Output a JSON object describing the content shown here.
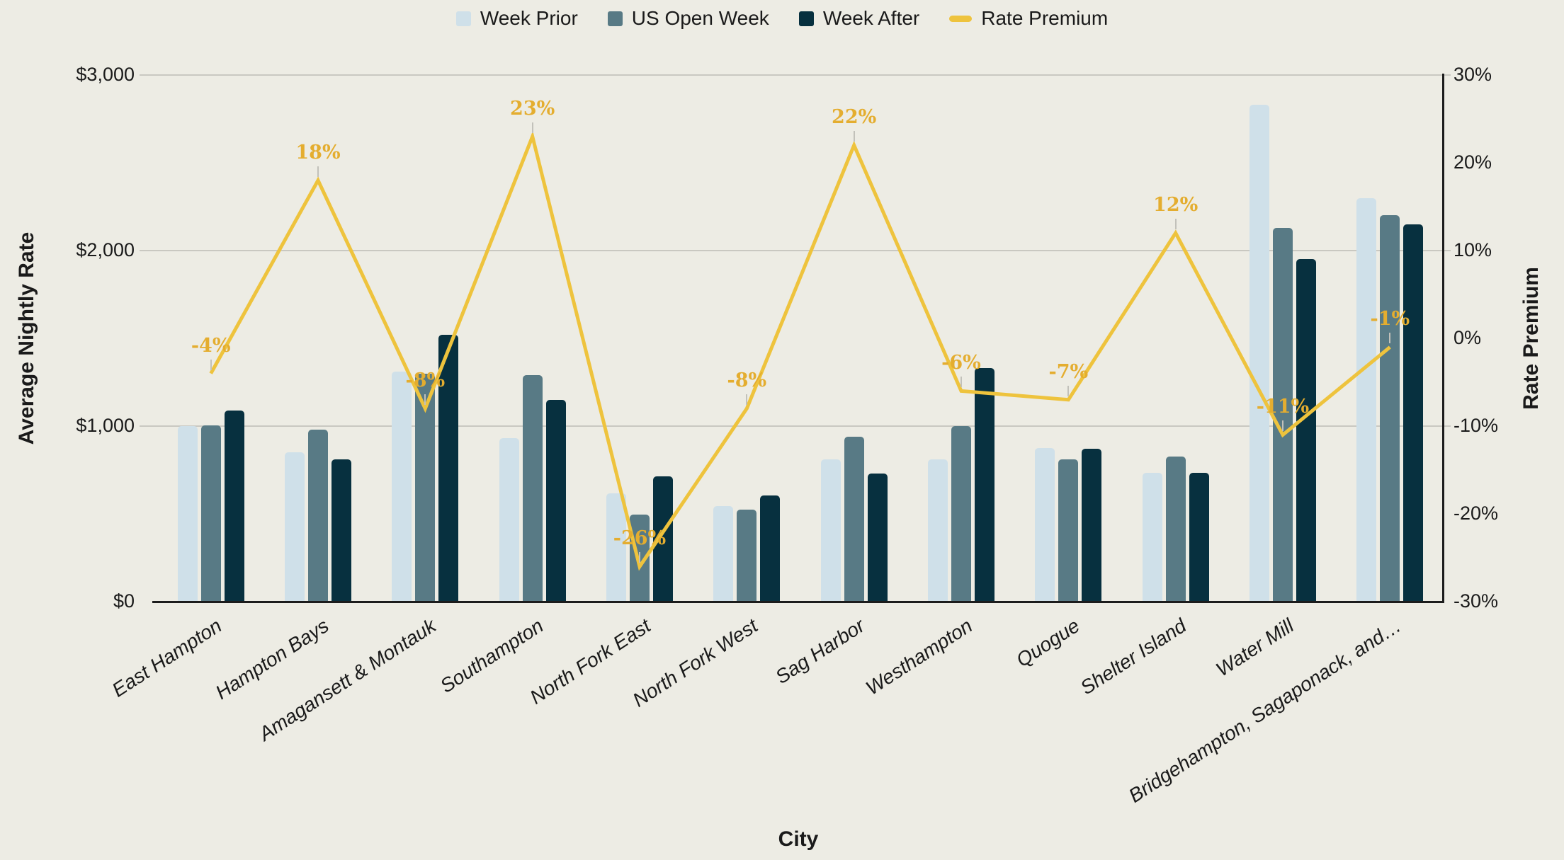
{
  "legend": {
    "items": [
      {
        "label": "Week Prior",
        "color": "#cfe0e9",
        "type": "square"
      },
      {
        "label": "US Open Week",
        "color": "#587a85",
        "type": "square"
      },
      {
        "label": "Week After",
        "color": "#07303f",
        "type": "square"
      },
      {
        "label": "Rate Premium",
        "color": "#eec33d",
        "type": "line"
      }
    ]
  },
  "axes": {
    "left_title": "Average Nightly Rate",
    "right_title": "Rate Premium",
    "bottom_title": "City"
  },
  "colors": {
    "background": "#edece4",
    "gridline": "#c9c8c1",
    "axis_line": "#1c1c1c",
    "week_prior": "#cfe0e9",
    "us_open_week": "#587a85",
    "week_after": "#07303f",
    "rate_premium_line": "#eec33d",
    "rate_premium_label": "#e4ad2f",
    "leader_line": "#c2c1ba",
    "text": "#1a1a1a"
  },
  "chart_data": {
    "type": "combo-bar-line",
    "categories": [
      "East Hampton",
      "Hampton Bays",
      "Amagansett & Montauk",
      "Southampton",
      "North Fork East",
      "North Fork West",
      "Sag Harbor",
      "Westhampton",
      "Quogue",
      "Shelter Island",
      "Water Mill",
      "Bridgehampton, Sagaponack, and…"
    ],
    "series": [
      {
        "name": "Week Prior",
        "axis": "left",
        "type": "bar",
        "values": [
          1000,
          850,
          1310,
          930,
          615,
          545,
          810,
          810,
          875,
          735,
          2830,
          2300
        ]
      },
      {
        "name": "US Open Week",
        "axis": "left",
        "type": "bar",
        "values": [
          1005,
          980,
          1300,
          1290,
          495,
          525,
          940,
          1000,
          810,
          825,
          2130,
          2200
        ]
      },
      {
        "name": "Week After",
        "axis": "left",
        "type": "bar",
        "values": [
          1090,
          810,
          1520,
          1150,
          715,
          605,
          730,
          1330,
          870,
          735,
          1950,
          2150
        ]
      },
      {
        "name": "Rate Premium",
        "axis": "right",
        "type": "line",
        "values": [
          -4,
          18,
          -8,
          23,
          -26,
          -8,
          22,
          -6,
          -7,
          12,
          -11,
          -1
        ],
        "labels": [
          "-4%",
          "18%",
          "-8%",
          "23%",
          "-26%",
          "-8%",
          "22%",
          "-6%",
          "-7%",
          "12%",
          "-11%",
          "-1%"
        ]
      }
    ],
    "xlabel": "City",
    "ylabel": "Average Nightly Rate",
    "y2label": "Rate Premium",
    "ylim": [
      0,
      3000
    ],
    "y2lim": [
      -30,
      30
    ],
    "grid": "horizontal",
    "legend_position": "top-center",
    "y_left_ticks": [
      {
        "label": "$0",
        "value": 0
      },
      {
        "label": "$1,000",
        "value": 1000
      },
      {
        "label": "$2,000",
        "value": 2000
      },
      {
        "label": "$3,000",
        "value": 3000
      }
    ],
    "y_right_ticks": [
      {
        "label": "-30%",
        "value": -30
      },
      {
        "label": "-20%",
        "value": -20
      },
      {
        "label": "-10%",
        "value": -10
      },
      {
        "label": "0%",
        "value": 0
      },
      {
        "label": "10%",
        "value": 10
      },
      {
        "label": "20%",
        "value": 20
      },
      {
        "label": "30%",
        "value": 30
      }
    ]
  }
}
